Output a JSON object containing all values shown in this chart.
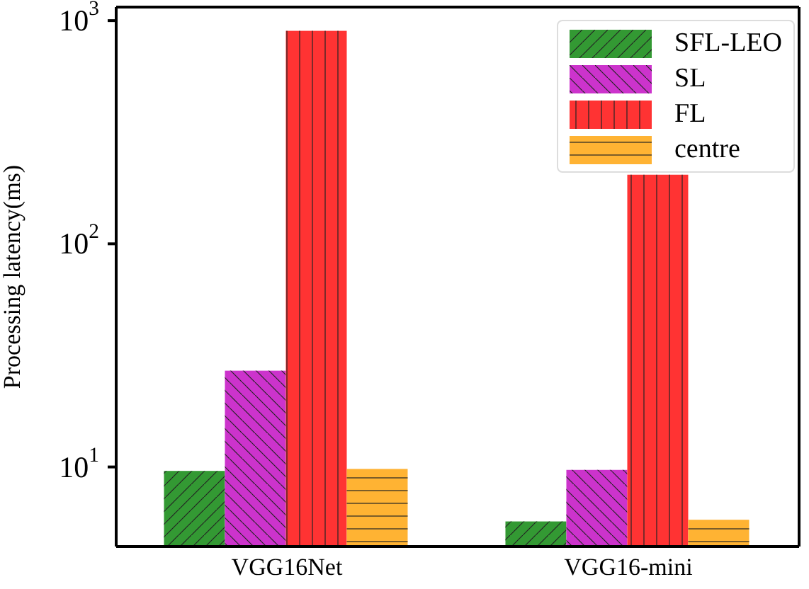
{
  "chart_data": {
    "type": "bar",
    "ylabel": "Processing latency(ms)",
    "categories": [
      "VGG16Net",
      "VGG16-mini"
    ],
    "series": [
      {
        "name": "SFL-LEO",
        "color": "#339933",
        "values": [
          9.6,
          5.7
        ]
      },
      {
        "name": "SL",
        "color": "#cc33cc",
        "values": [
          27,
          9.7
        ]
      },
      {
        "name": "FL",
        "color": "#ff3333",
        "values": [
          900,
          204
        ]
      },
      {
        "name": "centre",
        "color": "#ffb333",
        "values": [
          9.8,
          5.8
        ]
      }
    ],
    "log": true,
    "ylim": [
      4.4,
      1150
    ],
    "yticks": [
      {
        "value": 10,
        "label": "10$^{1}$"
      },
      {
        "value": 100,
        "label": "10$^{2}$"
      },
      {
        "value": 1000,
        "label": "10$^{3}$"
      }
    ],
    "legend": "top right"
  }
}
